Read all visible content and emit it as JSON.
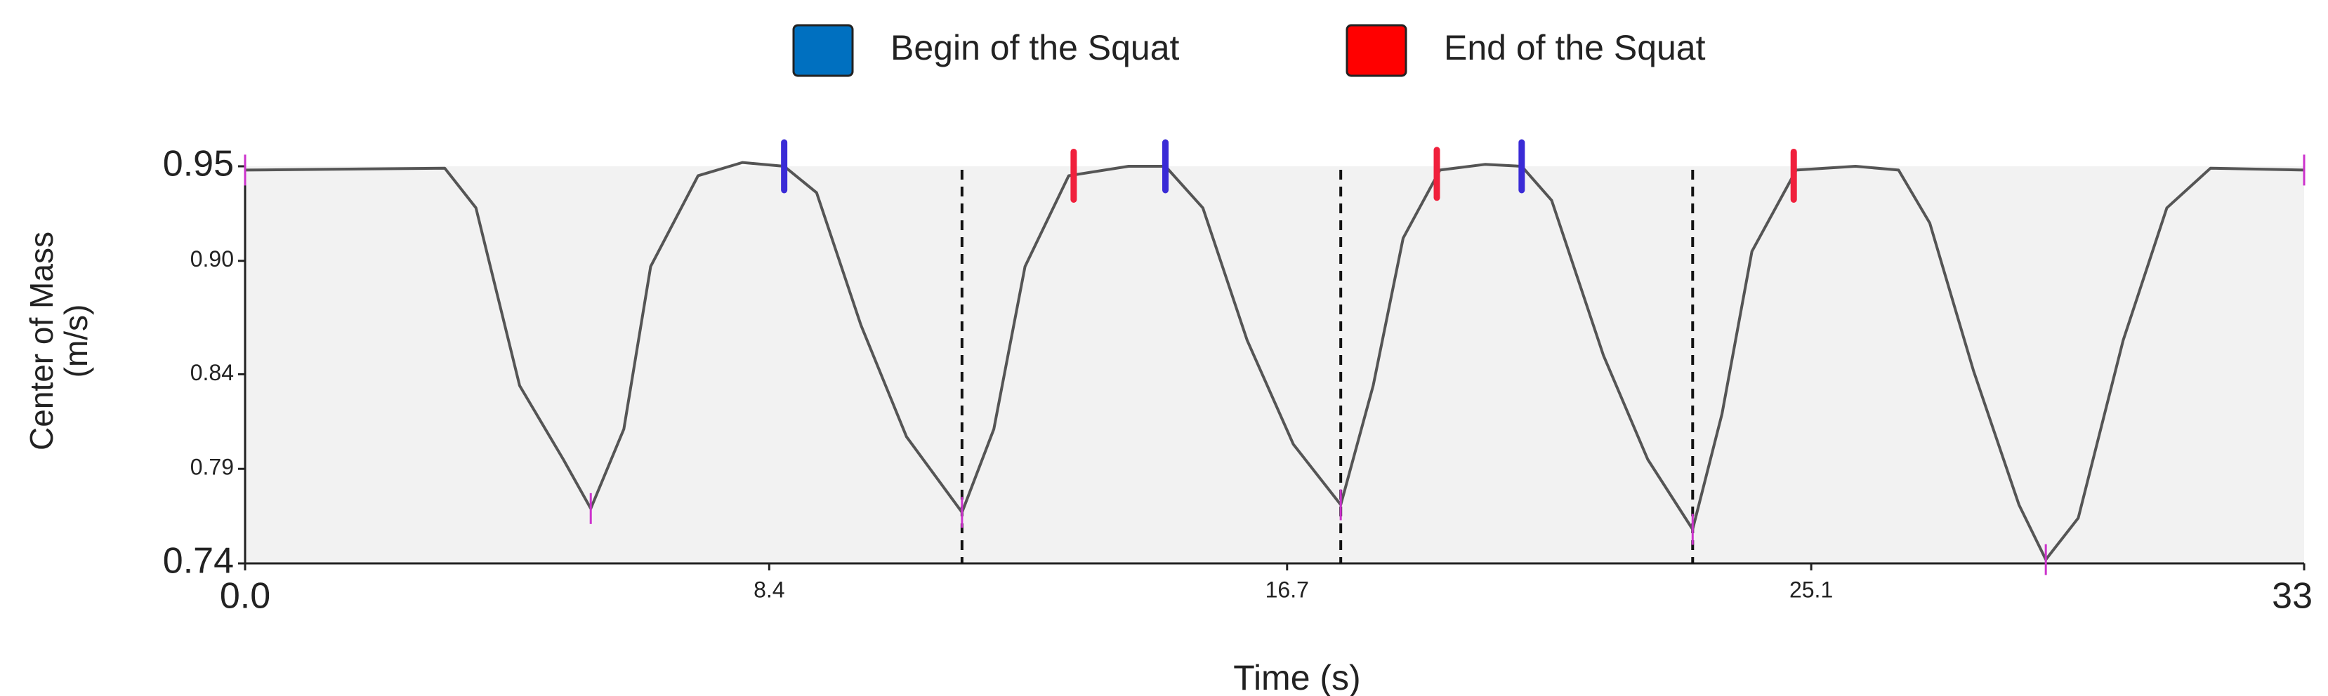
{
  "chart_data": {
    "type": "line",
    "xlabel": "Time (s)",
    "ylabel": [
      "Center of Mass",
      "(m/s)"
    ],
    "xlim": [
      0,
      33
    ],
    "ylim": [
      0.74,
      0.95
    ],
    "xticks": [
      {
        "value": 0,
        "label": "0.0"
      },
      8.4,
      16.7,
      25.1,
      33
    ],
    "yticks": [
      0.95,
      {
        "value": 0.9,
        "label": "0.90"
      },
      0.84,
      0.79,
      0.74
    ],
    "series": [
      {
        "color": "#555555",
        "x": [
          0,
          3.2,
          3.7,
          4.4,
          5.1,
          5.54,
          6.07,
          6.5,
          7.26,
          7.97,
          8.64,
          9.16,
          9.87,
          10.6,
          11.49,
          12.0,
          12.5,
          13.2,
          14.16,
          14.75,
          15.35,
          16.06,
          16.8,
          17.56,
          18.08,
          18.56,
          19.15,
          19.87,
          20.46,
          20.94,
          21.77,
          22.48,
          23.2,
          23.67,
          24.15,
          24.86,
          25.81,
          26.5,
          27.0,
          27.7,
          28.43,
          28.86,
          29.38,
          30.1,
          30.8,
          31.5,
          33
        ],
        "values": [
          0.948,
          0.949,
          0.928,
          0.834,
          0.795,
          0.769,
          0.811,
          0.897,
          0.945,
          0.952,
          0.95,
          0.936,
          0.866,
          0.807,
          0.767,
          0.811,
          0.897,
          0.945,
          0.95,
          0.95,
          0.928,
          0.858,
          0.803,
          0.771,
          0.834,
          0.912,
          0.948,
          0.951,
          0.95,
          0.932,
          0.85,
          0.795,
          0.758,
          0.819,
          0.905,
          0.948,
          0.95,
          0.948,
          0.92,
          0.842,
          0.771,
          0.742,
          0.764,
          0.858,
          0.928,
          0.949,
          0.948
        ]
      }
    ],
    "events": [
      {
        "name": "Begin of the Squat",
        "color": "#0070c0",
        "mark_color": "#3a2bd6",
        "x": [
          8.64,
          14.75,
          20.46
        ],
        "values": [
          0.95,
          0.95,
          0.95
        ]
      },
      {
        "name": "End of the Squat",
        "color": "#ff0000",
        "mark_color": "#f0203c",
        "x": [
          13.28,
          19.1,
          24.82
        ],
        "values": [
          0.945,
          0.946,
          0.945
        ]
      }
    ],
    "extrema": {
      "color": "#cc33cc",
      "x": [
        0,
        5.54,
        11.49,
        17.56,
        23.2,
        28.86,
        33
      ],
      "values": [
        0.948,
        0.769,
        0.767,
        0.771,
        0.758,
        0.742,
        0.948
      ]
    },
    "dividers": [
      11.49,
      17.56,
      23.2
    ],
    "plot_background": "#f2f2f2"
  }
}
